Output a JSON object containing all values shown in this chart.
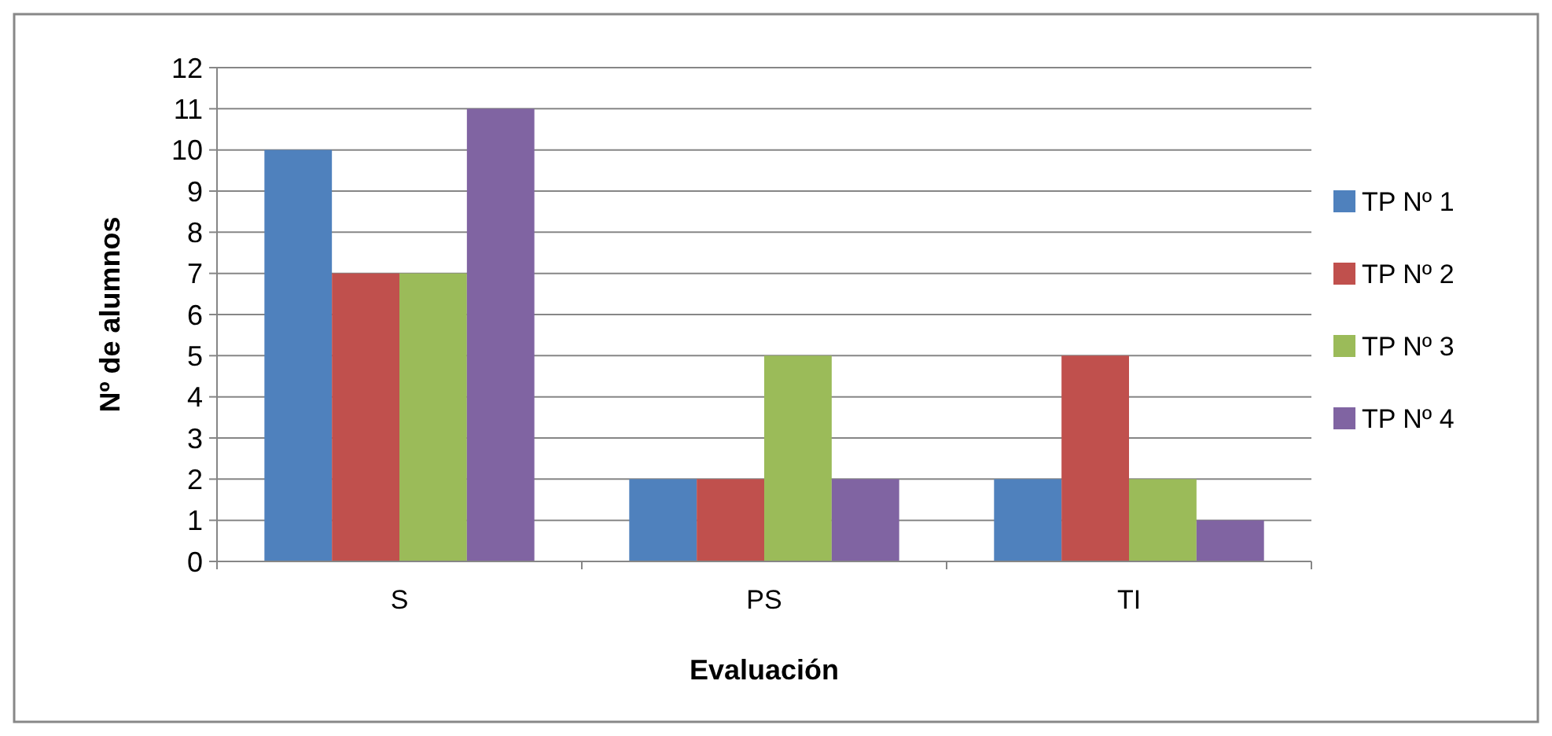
{
  "chart_data": {
    "type": "bar",
    "xlabel": "Evaluación",
    "ylabel": "Nº de alumnos",
    "categories": [
      "S",
      "PS",
      "TI"
    ],
    "series": [
      {
        "name": "TP Nº 1",
        "color": "#4f81bd",
        "values": [
          10,
          2,
          2
        ]
      },
      {
        "name": "TP Nº 2",
        "color": "#c0504d",
        "values": [
          7,
          2,
          5
        ]
      },
      {
        "name": "TP Nº 3",
        "color": "#9bbb59",
        "values": [
          7,
          5,
          2
        ]
      },
      {
        "name": "TP Nº 4",
        "color": "#8064a2",
        "values": [
          11,
          2,
          1
        ]
      }
    ],
    "ylim": [
      0,
      12
    ],
    "yticks": [
      0,
      1,
      2,
      3,
      4,
      5,
      6,
      7,
      8,
      9,
      10,
      11,
      12
    ],
    "grid": "y",
    "legend": "right"
  }
}
